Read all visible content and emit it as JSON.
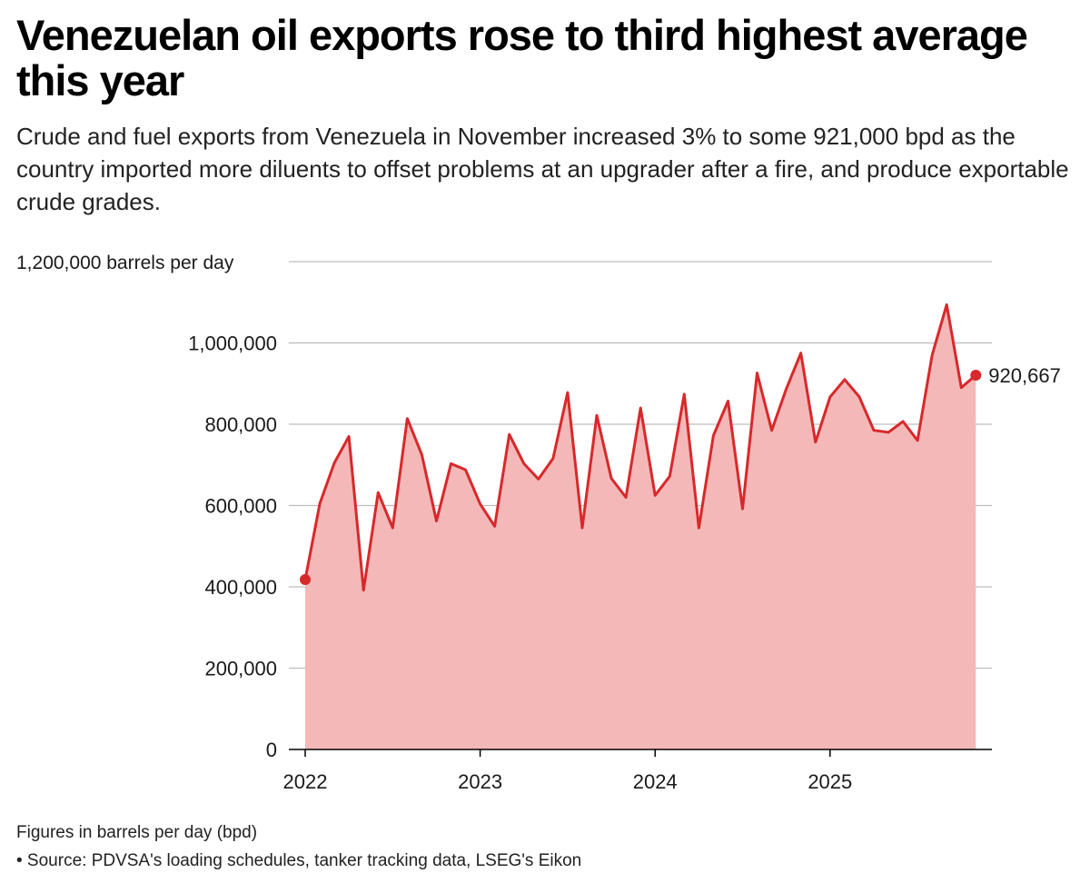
{
  "title": "Venezuelan oil exports rose to third highest average this year",
  "subtitle": "Crude and fuel exports from Venezuela in November increased 3% to some 921,000 bpd as the country imported more diluents to offset problems at an upgrader after a fire, and produce exportable crude grades.",
  "note": "Figures in barrels per day (bpd)",
  "source": "• Source: PDVSA's loading schedules, tanker tracking data, LSEG's Eikon",
  "colors": {
    "line": "#d7292b",
    "area": "#f4b8b8",
    "grid": "#bdbdbd",
    "axis": "#000000"
  },
  "chart_data": {
    "type": "area",
    "ylabel": "",
    "ylim": [
      0,
      1200000
    ],
    "y_ticks": [
      {
        "value": 0,
        "label": "0"
      },
      {
        "value": 200000,
        "label": "200,000"
      },
      {
        "value": 400000,
        "label": "400,000"
      },
      {
        "value": 600000,
        "label": "600,000"
      },
      {
        "value": 800000,
        "label": "800,000"
      },
      {
        "value": 1000000,
        "label": "1,000,000"
      },
      {
        "value": 1200000,
        "label": "1,200,000 barrels per day"
      }
    ],
    "x_ticks": [
      {
        "value": "2022-01",
        "label": "2022"
      },
      {
        "value": "2023-01",
        "label": "2023"
      },
      {
        "value": "2024-01",
        "label": "2024"
      },
      {
        "value": "2025-01",
        "label": "2025"
      }
    ],
    "grid": true,
    "series": [
      {
        "x": [
          "2022-01",
          "2022-02",
          "2022-03",
          "2022-04",
          "2022-05",
          "2022-06",
          "2022-07",
          "2022-08",
          "2022-09",
          "2022-10",
          "2022-11",
          "2022-12",
          "2023-01",
          "2023-02",
          "2023-03",
          "2023-04",
          "2023-05",
          "2023-06",
          "2023-07",
          "2023-08",
          "2023-09",
          "2023-10",
          "2023-11",
          "2023-12",
          "2024-01",
          "2024-02",
          "2024-03",
          "2024-04",
          "2024-05",
          "2024-06",
          "2024-07",
          "2024-08",
          "2024-09",
          "2024-10",
          "2024-11",
          "2024-12",
          "2025-01",
          "2025-02",
          "2025-03",
          "2025-04",
          "2025-05",
          "2025-06",
          "2025-07",
          "2025-08",
          "2025-09",
          "2025-10",
          "2025-11"
        ],
        "values": [
          418000,
          605000,
          705000,
          770000,
          392000,
          632000,
          545000,
          814000,
          725000,
          562000,
          703000,
          688000,
          604000,
          549000,
          775000,
          703000,
          665000,
          716000,
          878000,
          545000,
          822000,
          667000,
          620000,
          840000,
          625000,
          672000,
          874000,
          545000,
          772000,
          857000,
          592000,
          926000,
          785000,
          887000,
          975000,
          756000,
          867000,
          910000,
          868000,
          785000,
          780000,
          807000,
          760000,
          970000,
          1094000,
          890000,
          920667
        ]
      }
    ],
    "annotations": [
      {
        "x": "2025-11",
        "value": 920667,
        "label": "920,667"
      }
    ]
  }
}
